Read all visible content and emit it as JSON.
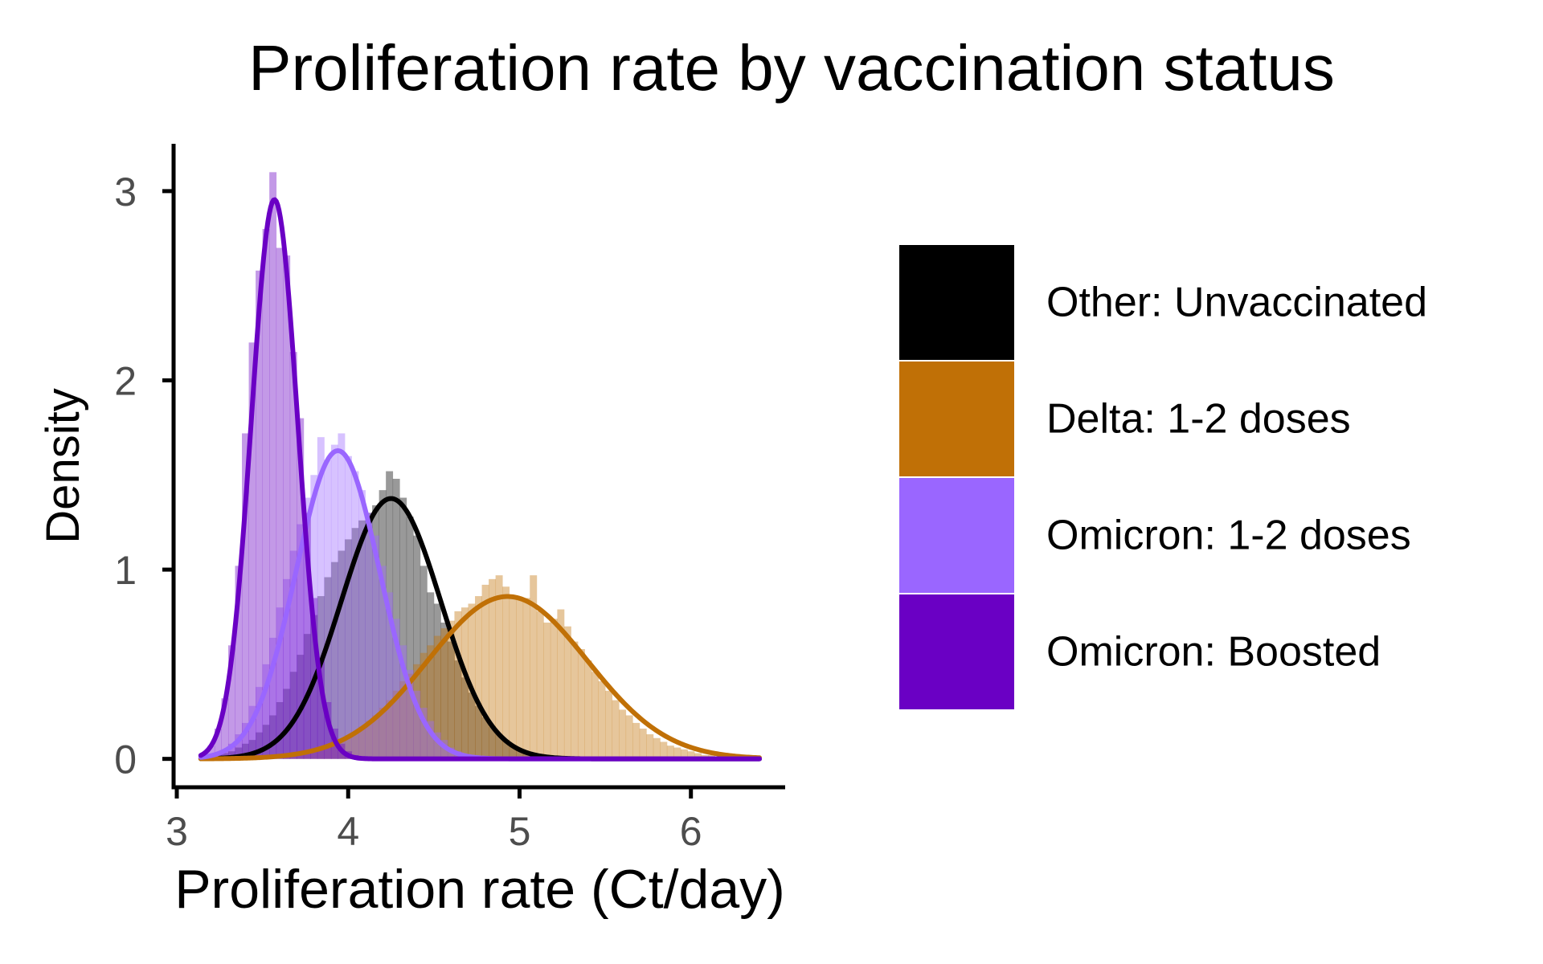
{
  "chart_data": {
    "type": "histogram-density",
    "title": "Proliferation rate by vaccination status",
    "xlabel": "Proliferation rate (Ct/day)",
    "ylabel": "Density",
    "xlim": [
      3.0,
      6.55
    ],
    "ylim": [
      -0.15,
      3.25
    ],
    "x_ticks": [
      3,
      4,
      5,
      6
    ],
    "y_ticks": [
      0,
      1,
      2,
      3
    ],
    "grid": false,
    "legend_position": "right",
    "bin_width": 0.04,
    "series": [
      {
        "name": "Other: Unvaccinated",
        "color": "#000000",
        "hist_opacity": 0.4,
        "mean": 4.25,
        "sd": 0.29,
        "histogram": [
          [
            3.24,
            0.02
          ],
          [
            3.28,
            0.03
          ],
          [
            3.32,
            0.04
          ],
          [
            3.36,
            0.06
          ],
          [
            3.4,
            0.08
          ],
          [
            3.44,
            0.1
          ],
          [
            3.48,
            0.14
          ],
          [
            3.52,
            0.18
          ],
          [
            3.56,
            0.23
          ],
          [
            3.6,
            0.3
          ],
          [
            3.64,
            0.37
          ],
          [
            3.68,
            0.46
          ],
          [
            3.72,
            0.55
          ],
          [
            3.76,
            0.66
          ],
          [
            3.8,
            0.76
          ],
          [
            3.84,
            0.86
          ],
          [
            3.88,
            0.96
          ],
          [
            3.92,
            1.04
          ],
          [
            3.96,
            1.1
          ],
          [
            4.0,
            1.16
          ],
          [
            4.04,
            1.22
          ],
          [
            4.08,
            1.26
          ],
          [
            4.12,
            1.3
          ],
          [
            4.16,
            1.34
          ],
          [
            4.2,
            1.42
          ],
          [
            4.24,
            1.52
          ],
          [
            4.28,
            1.48
          ],
          [
            4.32,
            1.38
          ],
          [
            4.36,
            1.28
          ],
          [
            4.4,
            1.18
          ],
          [
            4.44,
            1.02
          ],
          [
            4.48,
            0.88
          ],
          [
            4.52,
            0.82
          ],
          [
            4.56,
            0.72
          ],
          [
            4.6,
            0.62
          ],
          [
            4.64,
            0.52
          ],
          [
            4.68,
            0.43
          ],
          [
            4.72,
            0.35
          ],
          [
            4.76,
            0.28
          ],
          [
            4.8,
            0.22
          ],
          [
            4.84,
            0.17
          ],
          [
            4.88,
            0.13
          ],
          [
            4.92,
            0.1
          ],
          [
            4.96,
            0.07
          ],
          [
            5.0,
            0.05
          ],
          [
            5.04,
            0.04
          ],
          [
            5.08,
            0.03
          ],
          [
            5.12,
            0.02
          ]
        ]
      },
      {
        "name": "Delta: 1-2 doses",
        "color": "#c07006",
        "hist_opacity": 0.4,
        "mean": 4.93,
        "sd": 0.465,
        "histogram": [
          [
            3.64,
            0.02
          ],
          [
            3.68,
            0.03
          ],
          [
            3.72,
            0.03
          ],
          [
            3.76,
            0.04
          ],
          [
            3.8,
            0.05
          ],
          [
            3.84,
            0.06
          ],
          [
            3.88,
            0.07
          ],
          [
            3.92,
            0.08
          ],
          [
            3.96,
            0.1
          ],
          [
            4.0,
            0.12
          ],
          [
            4.04,
            0.14
          ],
          [
            4.08,
            0.17
          ],
          [
            4.12,
            0.2
          ],
          [
            4.16,
            0.23
          ],
          [
            4.2,
            0.27
          ],
          [
            4.24,
            0.31
          ],
          [
            4.28,
            0.36
          ],
          [
            4.32,
            0.41
          ],
          [
            4.36,
            0.45
          ],
          [
            4.4,
            0.5
          ],
          [
            4.44,
            0.56
          ],
          [
            4.48,
            0.6
          ],
          [
            4.52,
            0.65
          ],
          [
            4.56,
            0.69
          ],
          [
            4.6,
            0.73
          ],
          [
            4.64,
            0.78
          ],
          [
            4.68,
            0.8
          ],
          [
            4.72,
            0.82
          ],
          [
            4.76,
            0.86
          ],
          [
            4.8,
            0.92
          ],
          [
            4.84,
            0.95
          ],
          [
            4.88,
            0.97
          ],
          [
            4.92,
            0.91
          ],
          [
            4.96,
            0.86
          ],
          [
            5.0,
            0.84
          ],
          [
            5.04,
            0.85
          ],
          [
            5.08,
            0.97
          ],
          [
            5.12,
            0.78
          ],
          [
            5.16,
            0.72
          ],
          [
            5.2,
            0.74
          ],
          [
            5.24,
            0.79
          ],
          [
            5.28,
            0.7
          ],
          [
            5.32,
            0.62
          ],
          [
            5.36,
            0.58
          ],
          [
            5.4,
            0.52
          ],
          [
            5.44,
            0.46
          ],
          [
            5.48,
            0.41
          ],
          [
            5.52,
            0.36
          ],
          [
            5.56,
            0.31
          ],
          [
            5.6,
            0.26
          ],
          [
            5.64,
            0.23
          ],
          [
            5.68,
            0.19
          ],
          [
            5.72,
            0.16
          ],
          [
            5.76,
            0.13
          ],
          [
            5.8,
            0.11
          ],
          [
            5.84,
            0.09
          ],
          [
            5.88,
            0.07
          ],
          [
            5.92,
            0.06
          ],
          [
            5.96,
            0.05
          ],
          [
            6.0,
            0.04
          ],
          [
            6.04,
            0.03
          ],
          [
            6.08,
            0.02
          ],
          [
            6.12,
            0.02
          ],
          [
            6.16,
            0.01
          ],
          [
            6.2,
            0.01
          ],
          [
            6.24,
            0.01
          ]
        ]
      },
      {
        "name": "Omicron: 1-2 doses",
        "color": "#9a66ff",
        "hist_opacity": 0.4,
        "mean": 3.94,
        "sd": 0.245,
        "histogram": [
          [
            3.24,
            0.03
          ],
          [
            3.28,
            0.05
          ],
          [
            3.32,
            0.08
          ],
          [
            3.36,
            0.13
          ],
          [
            3.4,
            0.19
          ],
          [
            3.44,
            0.28
          ],
          [
            3.48,
            0.38
          ],
          [
            3.52,
            0.5
          ],
          [
            3.56,
            0.64
          ],
          [
            3.6,
            0.8
          ],
          [
            3.64,
            0.95
          ],
          [
            3.68,
            1.1
          ],
          [
            3.72,
            1.24
          ],
          [
            3.76,
            1.38
          ],
          [
            3.8,
            1.5
          ],
          [
            3.84,
            1.7
          ],
          [
            3.88,
            1.58
          ],
          [
            3.92,
            1.66
          ],
          [
            3.96,
            1.72
          ],
          [
            4.0,
            1.6
          ],
          [
            4.04,
            1.52
          ],
          [
            4.08,
            1.42
          ],
          [
            4.12,
            1.3
          ],
          [
            4.16,
            1.18
          ],
          [
            4.2,
            1.02
          ],
          [
            4.24,
            0.88
          ],
          [
            4.28,
            0.74
          ],
          [
            4.32,
            0.6
          ],
          [
            4.36,
            0.47
          ],
          [
            4.4,
            0.36
          ],
          [
            4.44,
            0.27
          ],
          [
            4.48,
            0.2
          ],
          [
            4.52,
            0.14
          ],
          [
            4.56,
            0.1
          ],
          [
            4.6,
            0.06
          ],
          [
            4.64,
            0.04
          ],
          [
            4.68,
            0.02
          ]
        ]
      },
      {
        "name": "Omicron: Boosted",
        "color": "#6a00c4",
        "hist_opacity": 0.4,
        "mean": 3.57,
        "sd": 0.135,
        "histogram": [
          [
            3.16,
            0.03
          ],
          [
            3.2,
            0.07
          ],
          [
            3.24,
            0.16
          ],
          [
            3.28,
            0.32
          ],
          [
            3.32,
            0.6
          ],
          [
            3.36,
            1.02
          ],
          [
            3.4,
            1.72
          ],
          [
            3.44,
            2.2
          ],
          [
            3.48,
            2.58
          ],
          [
            3.52,
            2.8
          ],
          [
            3.56,
            3.1
          ],
          [
            3.6,
            2.7
          ],
          [
            3.64,
            2.66
          ],
          [
            3.68,
            2.15
          ],
          [
            3.72,
            1.8
          ],
          [
            3.76,
            1.3
          ],
          [
            3.8,
            0.85
          ],
          [
            3.84,
            0.52
          ],
          [
            3.88,
            0.3
          ],
          [
            3.92,
            0.16
          ],
          [
            3.96,
            0.08
          ],
          [
            4.0,
            0.04
          ],
          [
            4.04,
            0.02
          ]
        ]
      }
    ],
    "curve_domain": [
      3.14,
      6.4
    ]
  }
}
